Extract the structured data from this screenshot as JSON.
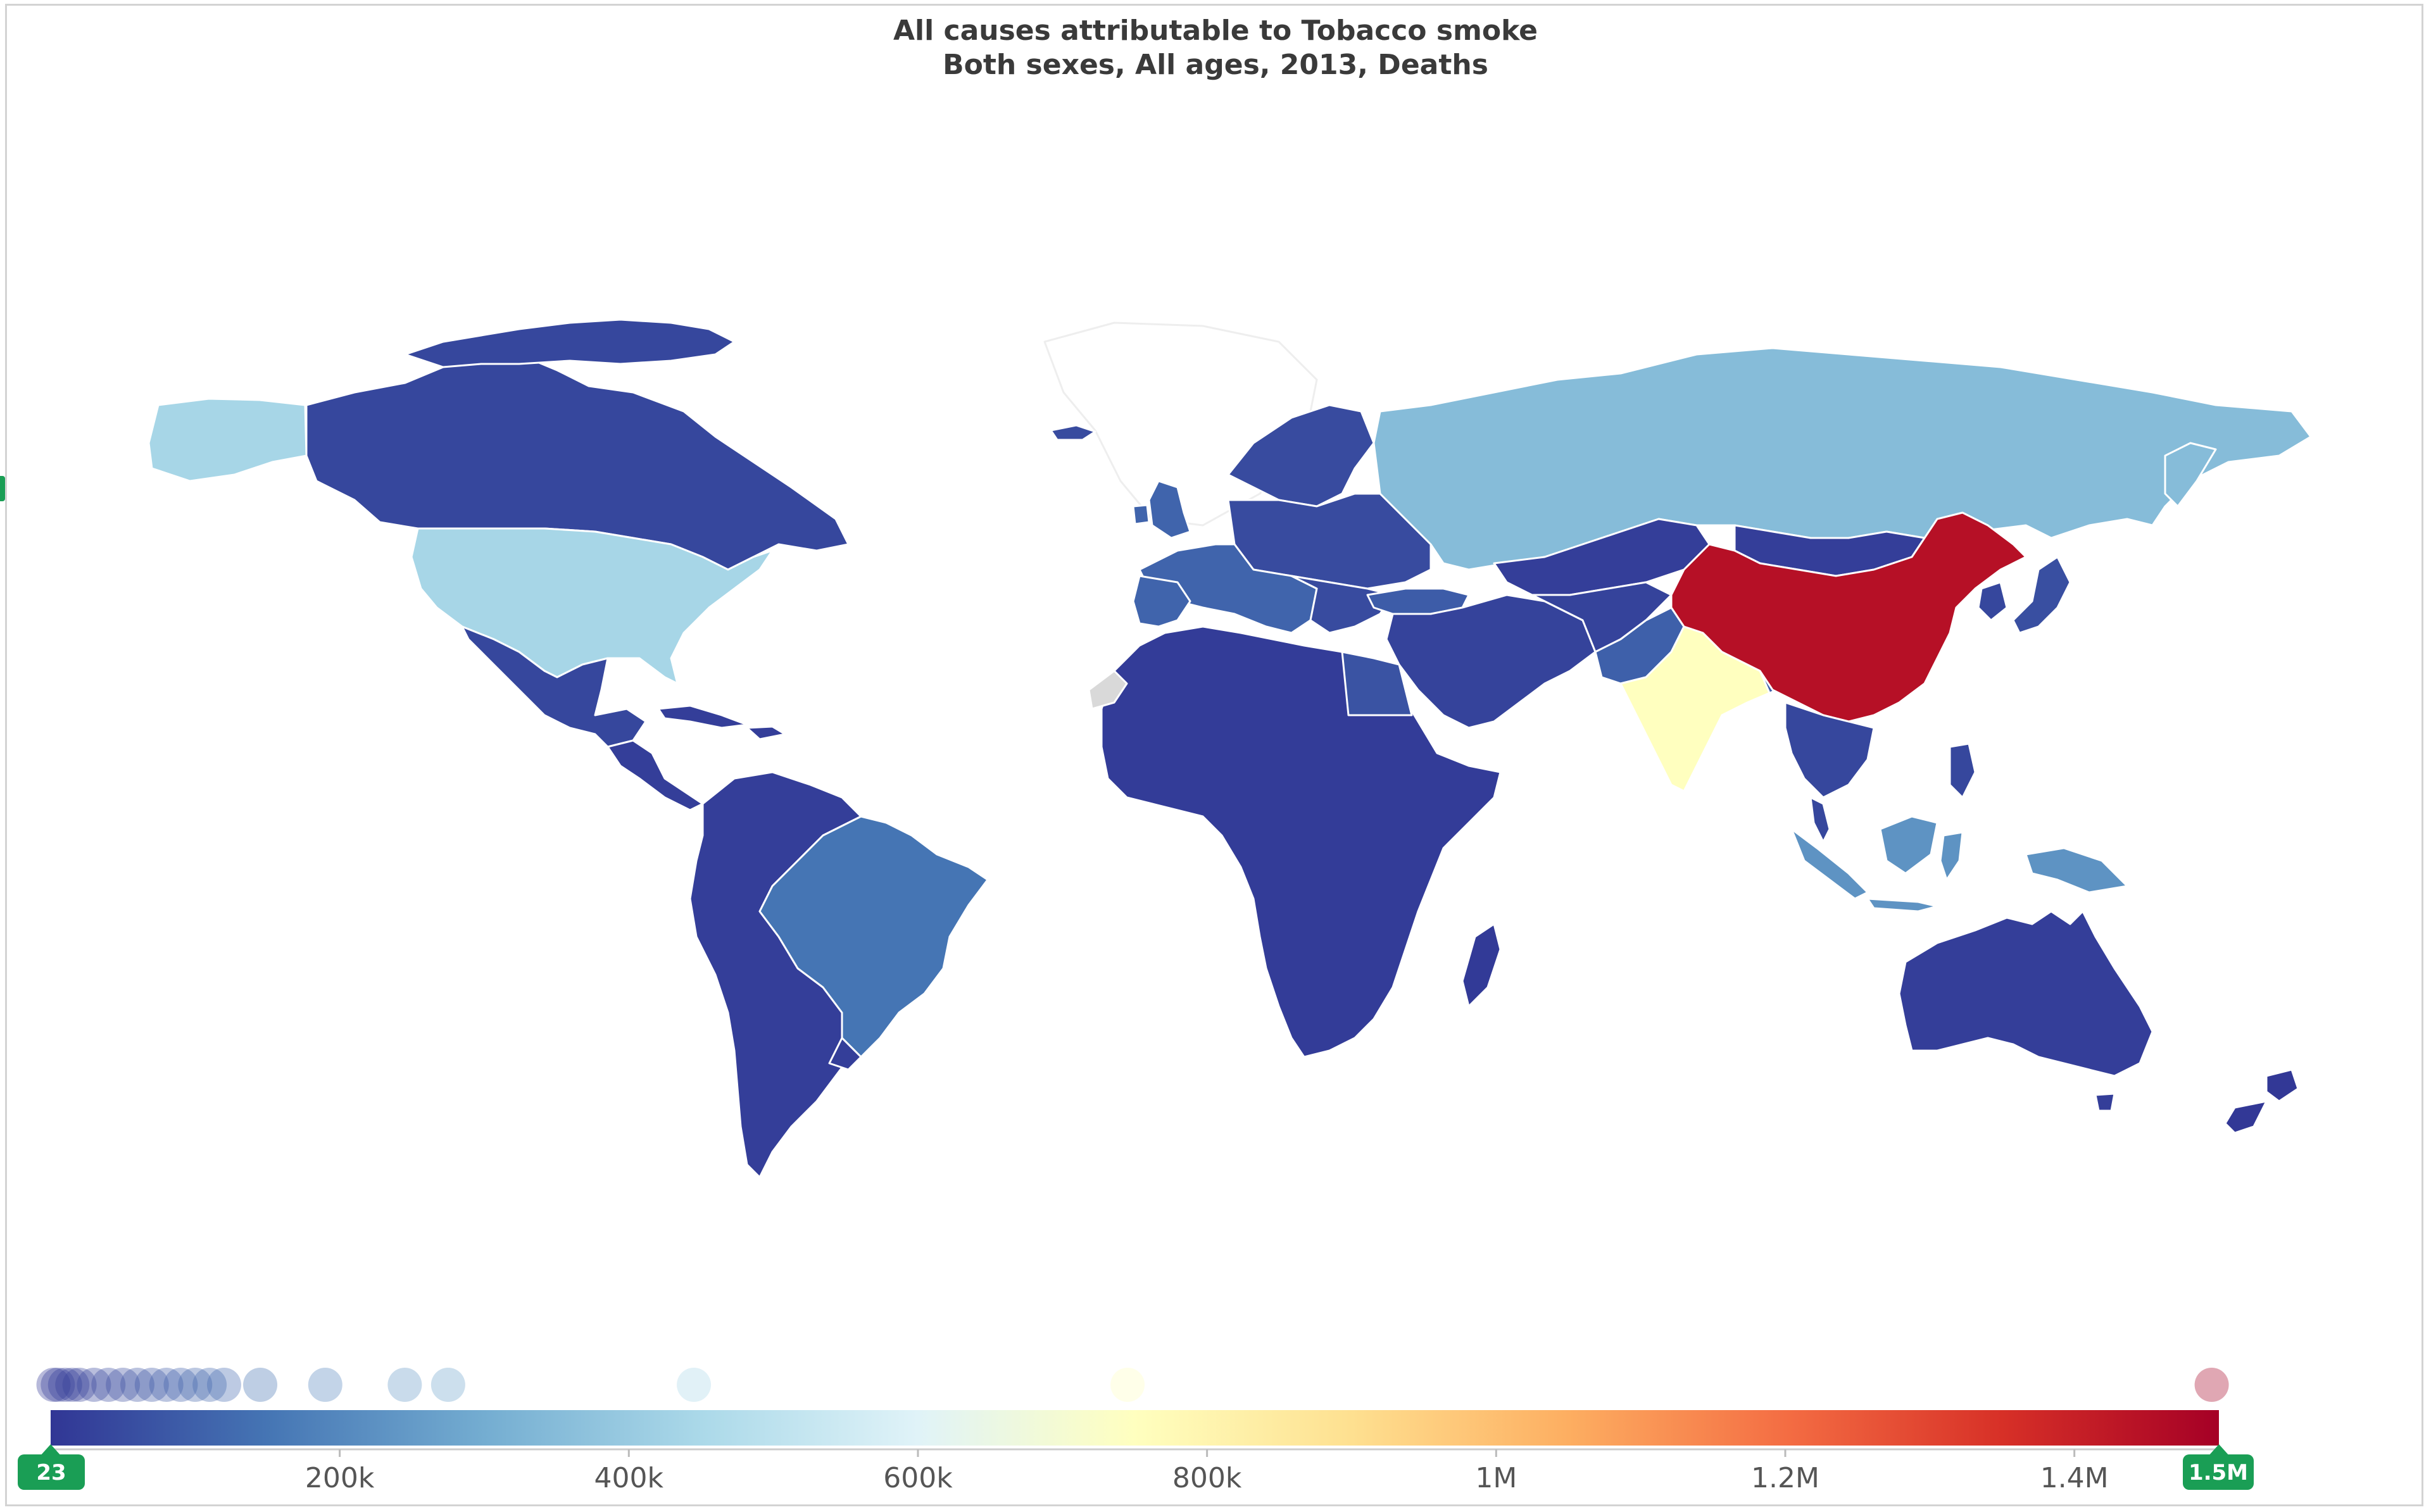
{
  "title": {
    "line1": "All causes attributable to Tobacco smoke",
    "line2": "Both sexes, All ages, 2013, Deaths"
  },
  "colors": {
    "scale": [
      "#313695",
      "#4575b4",
      "#74add1",
      "#abd9e9",
      "#e0f3f8",
      "#ffffbf",
      "#fee090",
      "#fdae61",
      "#f46d43",
      "#d73027",
      "#a50026"
    ],
    "no_data": "#d9d9d9",
    "border": "#ffffff",
    "handle": "#1a9e55"
  },
  "chart_data": {
    "type": "choropleth",
    "measure": "Deaths",
    "scale_range": [
      23,
      1500000
    ],
    "legend": {
      "min_label": "23",
      "max_label": "1.5M",
      "ticks": [
        {
          "value": 200000,
          "label": "200k"
        },
        {
          "value": 400000,
          "label": "400k"
        },
        {
          "value": 600000,
          "label": "600k"
        },
        {
          "value": 800000,
          "label": "800k"
        },
        {
          "value": 1000000,
          "label": "1M"
        },
        {
          "value": 1200000,
          "label": "1.2M"
        },
        {
          "value": 1400000,
          "label": "1.4M"
        }
      ],
      "distribution_values": [
        2000,
        5000,
        10000,
        15000,
        20000,
        30000,
        40000,
        50000,
        60000,
        70000,
        80000,
        90000,
        100000,
        110000,
        120000,
        145000,
        190000,
        245000,
        275000,
        445000,
        745000,
        1495000
      ]
    },
    "regions": [
      {
        "name": "China",
        "value": 1450000
      },
      {
        "name": "India",
        "value": 750000
      },
      {
        "name": "United States",
        "value": 440000
      },
      {
        "name": "Alaska (US)",
        "value": 440000
      },
      {
        "name": "Russia",
        "value": 350000
      },
      {
        "name": "Indonesia",
        "value": 230000
      },
      {
        "name": "Brazil",
        "value": 150000
      },
      {
        "name": "Western Europe",
        "value": 110000
      },
      {
        "name": "Turkey",
        "value": 90000
      },
      {
        "name": "Egypt",
        "value": 70000
      },
      {
        "name": "Pakistan / Bangladesh",
        "value": 100000
      },
      {
        "name": "Canada",
        "value": 40000
      },
      {
        "name": "Mexico",
        "value": 40000
      },
      {
        "name": "South America (other)",
        "value": 20000
      },
      {
        "name": "Africa (other)",
        "value": 15000
      },
      {
        "name": "Middle East / Central Asia",
        "value": 30000
      },
      {
        "name": "Mongolia / Kazakhstan",
        "value": 20000
      },
      {
        "name": "Southeast Asia",
        "value": 40000
      },
      {
        "name": "Australia",
        "value": 20000
      },
      {
        "name": "New Zealand",
        "value": 5000
      },
      {
        "name": "Japan",
        "value": 60000
      },
      {
        "name": "Scandinavia / Eastern Europe",
        "value": 50000
      },
      {
        "name": "Madagascar",
        "value": 10000
      },
      {
        "name": "Western Sahara",
        "value": null
      },
      {
        "name": "Greenland",
        "value": null
      }
    ]
  }
}
